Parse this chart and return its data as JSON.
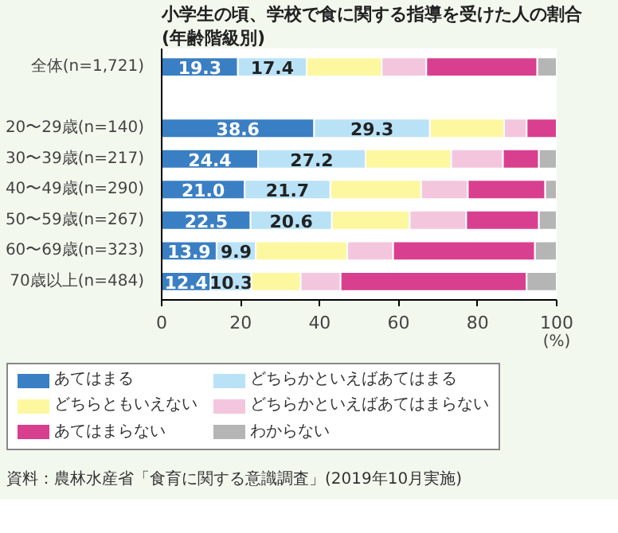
{
  "chart_data": {
    "type": "bar",
    "orientation": "horizontal",
    "stacked": true,
    "title": "小学生の頃、学校で食に関する指導を受けた人の割合",
    "subtitle": "(年齢階級別)",
    "xlabel": "(%)",
    "categories": [
      "全体(n=1,721)",
      null,
      "20〜29歳(n=140)",
      "30〜39歳(n=217)",
      "40〜49歳(n=290)",
      "50〜59歳(n=267)",
      "60〜69歳(n=323)",
      "70歳以上(n=484)"
    ],
    "series": [
      {
        "name": "あてはまる",
        "color": "#3a7fc3",
        "values": [
          19.3,
          null,
          38.6,
          24.4,
          21.0,
          22.5,
          13.9,
          12.4
        ],
        "value_labels": [
          "19.3",
          null,
          "38.6",
          "24.4",
          "21.0",
          "22.5",
          "13.9",
          "12.4"
        ]
      },
      {
        "name": "どちらかといえばあてはまる",
        "color": "#b9e2f7",
        "values": [
          17.4,
          null,
          29.3,
          27.2,
          21.7,
          20.6,
          9.9,
          10.3
        ],
        "value_labels": [
          "17.4",
          null,
          "29.3",
          "27.2",
          "21.7",
          "20.6",
          "9.9",
          "10.3"
        ]
      },
      {
        "name": "どちらともいえない",
        "color": "#fdf7a0",
        "values": [
          19.0,
          null,
          18.8,
          21.7,
          23.0,
          19.7,
          23.2,
          12.5
        ]
      },
      {
        "name": "どちらかといえばあてはまらない",
        "color": "#f4c6de",
        "values": [
          11.3,
          null,
          5.7,
          13.1,
          11.8,
          14.3,
          11.6,
          10.1
        ]
      },
      {
        "name": "あてはまらない",
        "color": "#d93f8f",
        "values": [
          28.1,
          null,
          7.6,
          9.1,
          19.6,
          18.4,
          35.9,
          47.1
        ]
      },
      {
        "name": "わからない",
        "color": "#b5b5b5",
        "values": [
          4.9,
          null,
          0,
          4.5,
          2.9,
          4.5,
          5.5,
          7.6
        ]
      }
    ],
    "xlim": [
      0,
      100
    ],
    "xticks": [
      0,
      20,
      40,
      60,
      80,
      100
    ],
    "grid": false,
    "legend": "bottom",
    "annotations": [
      "資料：農林水産省「食育に関する意識調査」(2019年10月実施)"
    ]
  }
}
